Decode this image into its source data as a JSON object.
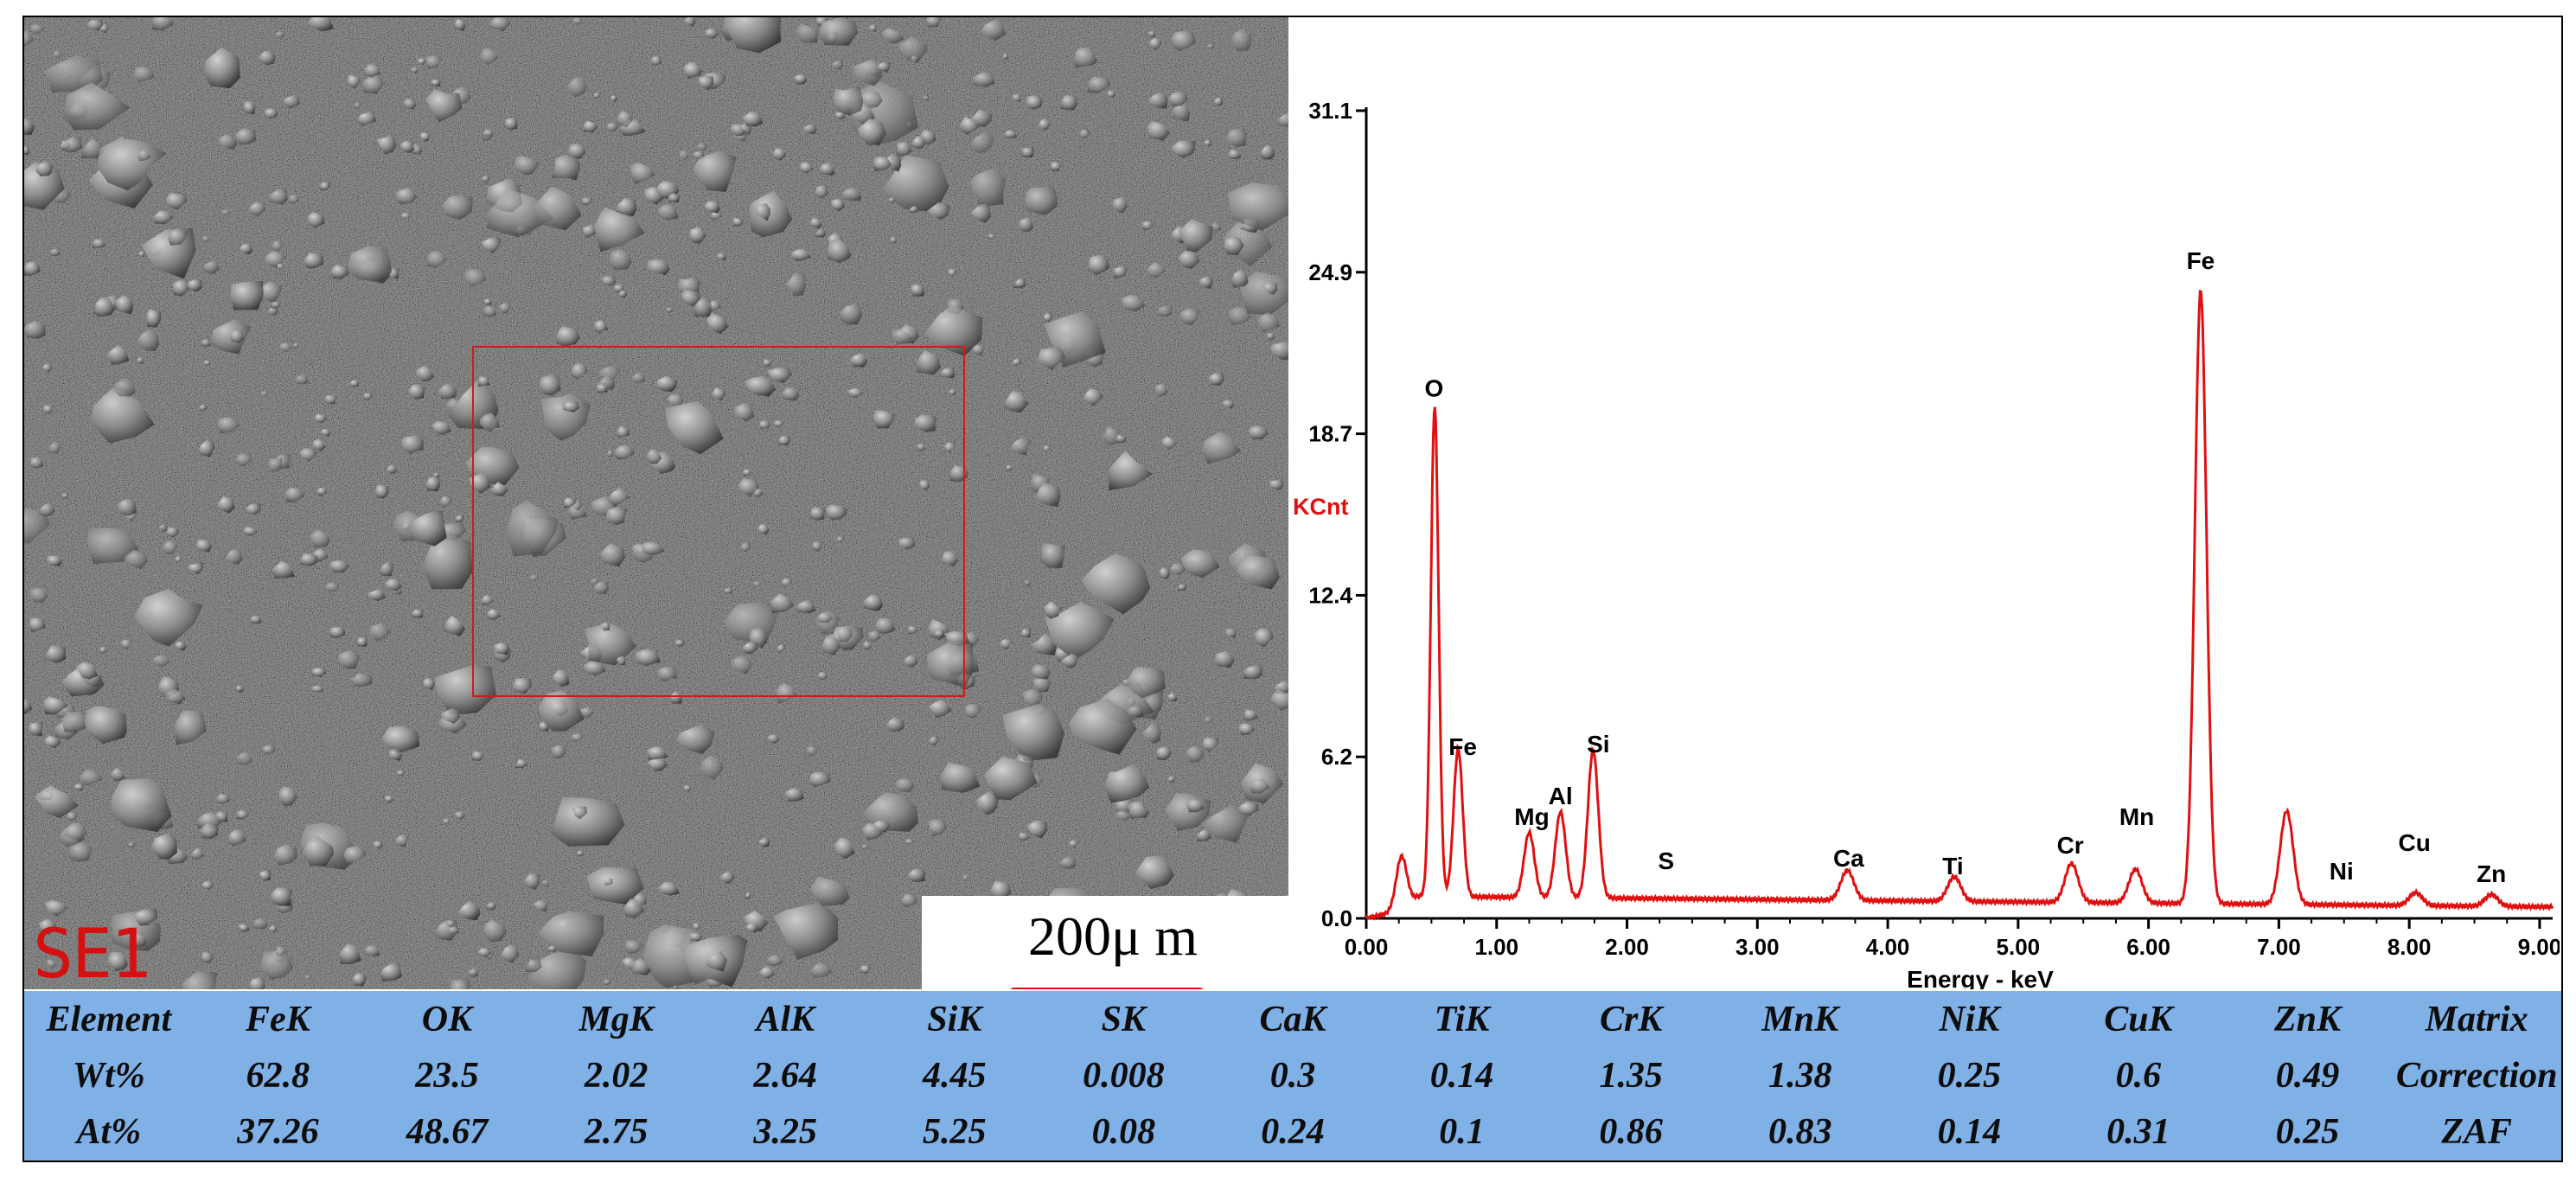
{
  "micrograph": {
    "label": "SE1",
    "scale_bar_label": "200μ m"
  },
  "chart_data": {
    "type": "line",
    "ylabel": "KCnt",
    "xlabel": "Energy - keV",
    "xlim": [
      0,
      9.1
    ],
    "ylim": [
      0,
      31.1
    ],
    "y_ticks": [
      "0.0",
      "6.2",
      "12.4",
      "18.7",
      "24.9",
      "31.1"
    ],
    "x_ticks": [
      "0.00",
      "1.00",
      "2.00",
      "3.00",
      "4.00",
      "5.00",
      "6.00",
      "7.00",
      "8.00",
      "9.00"
    ],
    "grid": false,
    "legend": "none",
    "series_color": "#e01010",
    "baseline": 0.85,
    "peaks": [
      {
        "center": 0.27,
        "height": 1.9,
        "width": 0.04
      },
      {
        "center": 0.525,
        "height": 18.9,
        "width": 0.03
      },
      {
        "center": 0.705,
        "height": 5.7,
        "width": 0.035
      },
      {
        "center": 1.25,
        "height": 2.5,
        "width": 0.04
      },
      {
        "center": 1.49,
        "height": 3.3,
        "width": 0.04
      },
      {
        "center": 1.74,
        "height": 5.7,
        "width": 0.04
      },
      {
        "center": 3.69,
        "height": 1.15,
        "width": 0.05
      },
      {
        "center": 4.51,
        "height": 0.95,
        "width": 0.05
      },
      {
        "center": 5.41,
        "height": 1.5,
        "width": 0.05
      },
      {
        "center": 5.9,
        "height": 1.3,
        "width": 0.05
      },
      {
        "center": 6.4,
        "height": 23.6,
        "width": 0.045
      },
      {
        "center": 7.06,
        "height": 3.6,
        "width": 0.05
      },
      {
        "center": 8.05,
        "height": 0.5,
        "width": 0.05
      },
      {
        "center": 8.63,
        "height": 0.45,
        "width": 0.05
      }
    ],
    "peak_labels": [
      {
        "text": "O",
        "x": 0.52,
        "y": 20.1
      },
      {
        "text": "Fe",
        "x": 0.74,
        "y": 6.3
      },
      {
        "text": "Mg",
        "x": 1.27,
        "y": 3.6
      },
      {
        "text": "Al",
        "x": 1.49,
        "y": 4.4
      },
      {
        "text": "Si",
        "x": 1.78,
        "y": 6.4
      },
      {
        "text": "S",
        "x": 2.3,
        "y": 1.9
      },
      {
        "text": "Ca",
        "x": 3.7,
        "y": 2.0
      },
      {
        "text": "Ti",
        "x": 4.5,
        "y": 1.7
      },
      {
        "text": "Cr",
        "x": 5.4,
        "y": 2.5
      },
      {
        "text": "Mn",
        "x": 5.91,
        "y": 3.6
      },
      {
        "text": "Fe",
        "x": 6.4,
        "y": 25.0
      },
      {
        "text": "Ni",
        "x": 7.48,
        "y": 1.5
      },
      {
        "text": "Cu",
        "x": 8.04,
        "y": 2.6
      },
      {
        "text": "Zn",
        "x": 8.63,
        "y": 1.4
      }
    ]
  },
  "composition_table": {
    "header": [
      "Element",
      "FeK",
      "OK",
      "MgK",
      "AlK",
      "SiK",
      "SK",
      "CaK",
      "TiK",
      "CrK",
      "MnK",
      "NiK",
      "CuK",
      "ZnK",
      "Matrix"
    ],
    "rows": [
      [
        "Wt%",
        "62.8",
        "23.5",
        "2.02",
        "2.64",
        "4.45",
        "0.008",
        "0.3",
        "0.14",
        "1.35",
        "1.38",
        "0.25",
        "0.6",
        "0.49",
        "Correction"
      ],
      [
        "At%",
        "37.26",
        "48.67",
        "2.75",
        "3.25",
        "5.25",
        "0.08",
        "0.24",
        "0.1",
        "0.86",
        "0.83",
        "0.14",
        "0.31",
        "0.25",
        "ZAF"
      ]
    ]
  }
}
